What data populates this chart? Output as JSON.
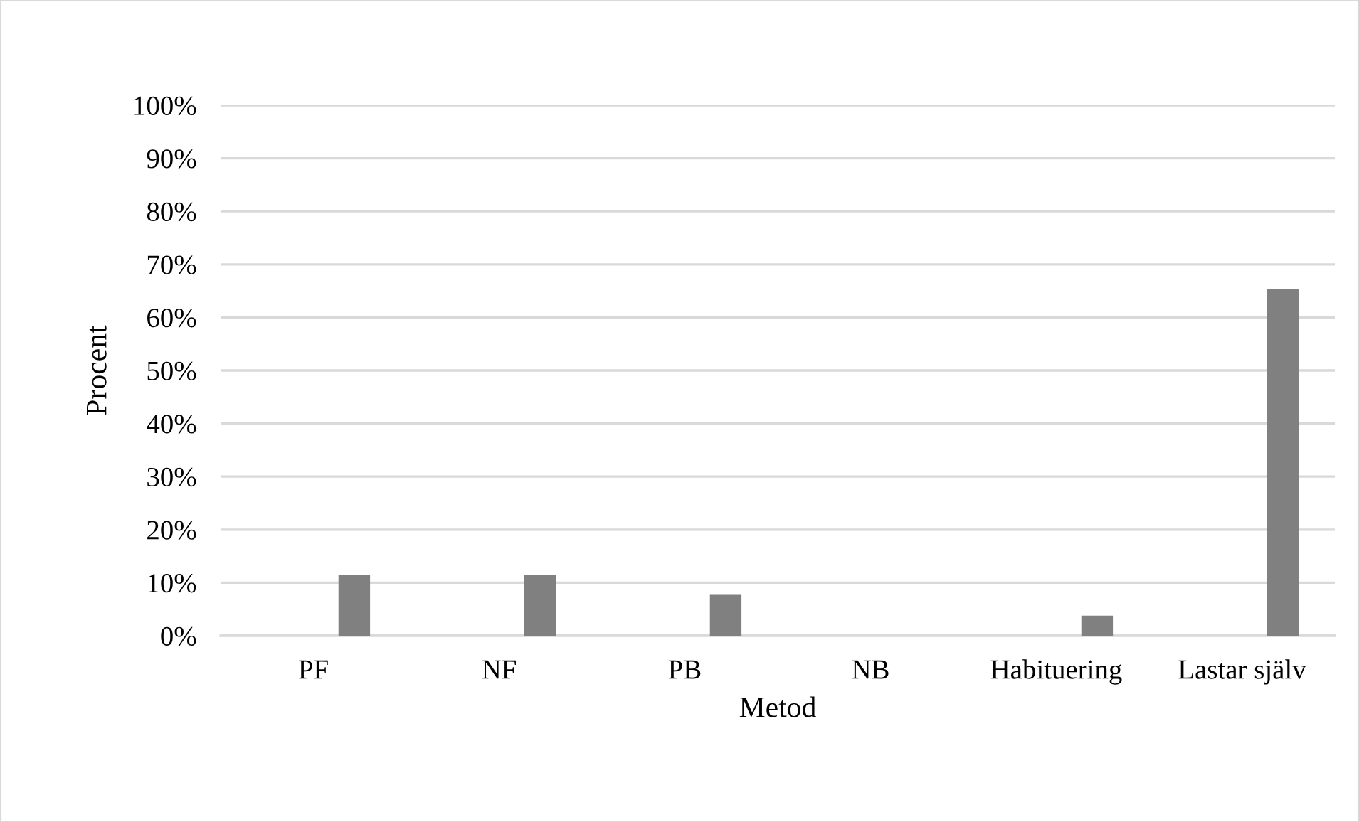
{
  "chart_data": {
    "type": "bar",
    "xlabel": "Metod",
    "ylabel": "Procent",
    "categories": [
      "PF",
      "NF",
      "PB",
      "NB",
      "Habituering",
      "Lastar själv"
    ],
    "values": [
      11.5,
      11.5,
      7.7,
      0,
      3.8,
      65.4
    ],
    "color": "#808080",
    "ylim": [
      0,
      100
    ],
    "yticks": [
      {
        "value": 0,
        "label": "0%"
      },
      {
        "value": 10,
        "label": "10%"
      },
      {
        "value": 20,
        "label": "20%"
      },
      {
        "value": 30,
        "label": "30%"
      },
      {
        "value": 40,
        "label": "40%"
      },
      {
        "value": 50,
        "label": "50%"
      },
      {
        "value": 60,
        "label": "60%"
      },
      {
        "value": 70,
        "label": "70%"
      },
      {
        "value": 80,
        "label": "80%"
      },
      {
        "value": 90,
        "label": "90%"
      },
      {
        "value": 100,
        "label": "100%"
      }
    ],
    "grid": "y",
    "legend": false
  }
}
